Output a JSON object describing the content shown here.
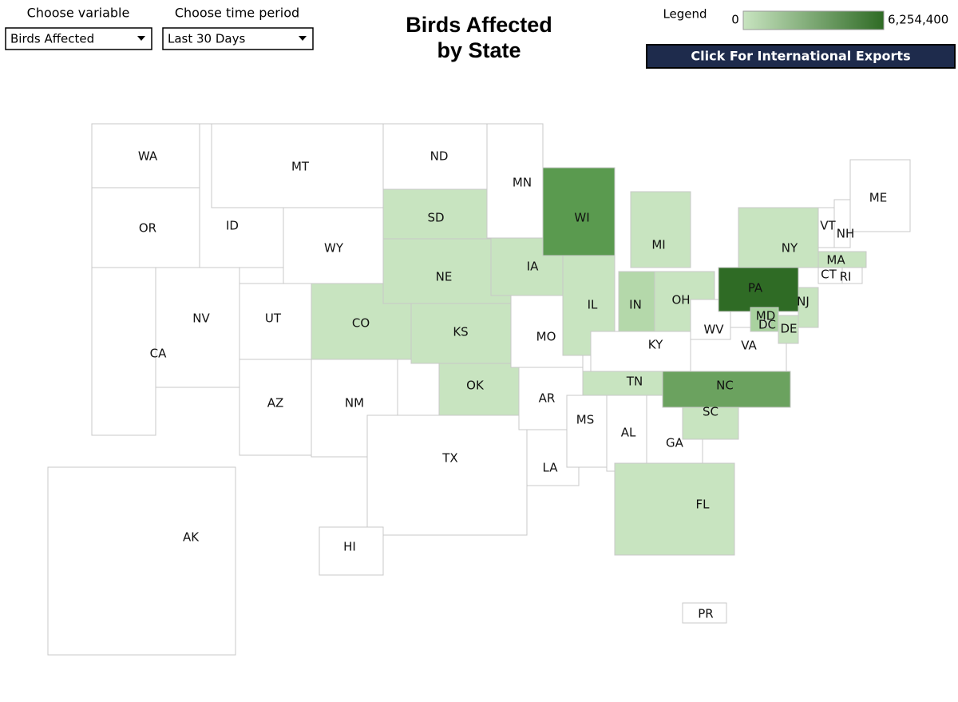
{
  "controls": [
    {
      "label": "Choose variable",
      "value": "Birds Affected"
    },
    {
      "label": "Choose time period",
      "value": "Last 30 Days"
    }
  ],
  "title_lines": [
    "Birds Affected",
    "by State"
  ],
  "legend": {
    "label": "Legend",
    "min": "0",
    "max": "6,254,400",
    "color_low": "#c8e4c0",
    "color_high": "#2f6b25"
  },
  "button": "Click For International Exports",
  "states": [
    {
      "label": "WA",
      "color": "#ffffff"
    },
    {
      "label": "OR",
      "color": "#ffffff"
    },
    {
      "label": "CA",
      "color": "#ffffff"
    },
    {
      "label": "NV",
      "color": "#ffffff"
    },
    {
      "label": "ID",
      "color": "#ffffff"
    },
    {
      "label": "MT",
      "color": "#ffffff"
    },
    {
      "label": "WY",
      "color": "#ffffff"
    },
    {
      "label": "UT",
      "color": "#ffffff"
    },
    {
      "label": "AZ",
      "color": "#ffffff"
    },
    {
      "label": "NM",
      "color": "#ffffff"
    },
    {
      "label": "CO",
      "color": "#c8e4c0"
    },
    {
      "label": "ND",
      "color": "#ffffff"
    },
    {
      "label": "SD",
      "color": "#c8e4c0"
    },
    {
      "label": "NE",
      "color": "#c8e4c0"
    },
    {
      "label": "KS",
      "color": "#c8e4c0"
    },
    {
      "label": "OK",
      "color": "#c8e4c0"
    },
    {
      "label": "TX",
      "color": "#ffffff"
    },
    {
      "label": "MN",
      "color": "#ffffff"
    },
    {
      "label": "IA",
      "color": "#c8e4c0"
    },
    {
      "label": "MO",
      "color": "#ffffff"
    },
    {
      "label": "AR",
      "color": "#ffffff"
    },
    {
      "label": "LA",
      "color": "#ffffff"
    },
    {
      "label": "WI",
      "color": "#5a9a4f"
    },
    {
      "label": "IL",
      "color": "#c8e4c0"
    },
    {
      "label": "MI",
      "color": "#c8e4c0"
    },
    {
      "label": "IN",
      "color": "#b4d8aa"
    },
    {
      "label": "OH",
      "color": "#c8e4c0"
    },
    {
      "label": "KY",
      "color": "#ffffff"
    },
    {
      "label": "TN",
      "color": "#c8e4c0"
    },
    {
      "label": "MS",
      "color": "#ffffff"
    },
    {
      "label": "AL",
      "color": "#ffffff"
    },
    {
      "label": "GA",
      "color": "#ffffff"
    },
    {
      "label": "FL",
      "color": "#c8e4c0"
    },
    {
      "label": "SC",
      "color": "#c8e4c0"
    },
    {
      "label": "NC",
      "color": "#6ba25f"
    },
    {
      "label": "VA",
      "color": "#ffffff"
    },
    {
      "label": "WV",
      "color": "#ffffff"
    },
    {
      "label": "PA",
      "color": "#2f6b25"
    },
    {
      "label": "NY",
      "color": "#c8e4c0"
    },
    {
      "label": "VT",
      "color": "#ffffff"
    },
    {
      "label": "NH",
      "color": "#ffffff"
    },
    {
      "label": "ME",
      "color": "#ffffff"
    },
    {
      "label": "MA",
      "color": "#c8e4c0"
    },
    {
      "label": "CT",
      "color": "#ffffff"
    },
    {
      "label": "RI",
      "color": "#ffffff"
    },
    {
      "label": "NJ",
      "color": "#c8e4c0"
    },
    {
      "label": "DE",
      "color": "#c8e4c0"
    },
    {
      "label": "MD",
      "color": "#a9d29f"
    },
    {
      "label": "DC",
      "color": "#c8e4c0"
    },
    {
      "label": "AK",
      "color": "#ffffff"
    },
    {
      "label": "HI",
      "color": "#ffffff"
    },
    {
      "label": "PR",
      "color": "#ffffff"
    }
  ]
}
